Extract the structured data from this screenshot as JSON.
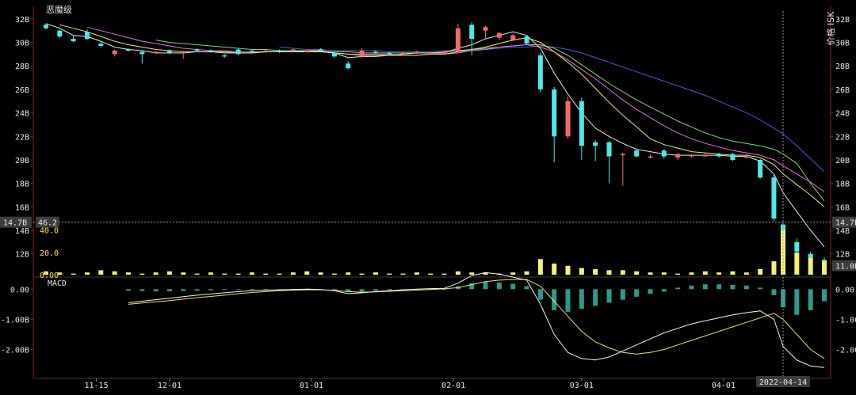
{
  "window": {
    "title": "恶魔级"
  },
  "price_axis_label": "价格 ISK",
  "crosshair": {
    "price_label": "14.7B",
    "volume_label": "46.2",
    "right_price_label": "14.7B",
    "right_lower_label": "11.0B",
    "date_label": "2022-04-14"
  },
  "panels": {
    "price": {
      "y_ticks": [
        "32B",
        "30B",
        "28B",
        "26B",
        "24B",
        "22B",
        "20B",
        "18B",
        "16B",
        "14B",
        "12B"
      ],
      "ylim": [
        10.5,
        32.8
      ]
    },
    "volume": {
      "y_ticks": [
        "40.0",
        "20.0",
        "0.00"
      ],
      "ylim": [
        0,
        46.2
      ]
    },
    "macd": {
      "title": "MACD",
      "y_ticks": [
        "0.00",
        "-1.00B",
        "-2.00B"
      ],
      "ylim": [
        -2.75,
        0.35
      ]
    }
  },
  "x_axis": {
    "ticks": [
      "11-15",
      "12-01",
      "01-01",
      "02-01",
      "03-01",
      "04-01"
    ]
  },
  "colors": {
    "up": "#f26a6a",
    "down": "#4fe8e8",
    "volume": "#f5f07a",
    "ma5": "#e8e8e8",
    "ma10": "#f2e56a",
    "ma20": "#e070e0",
    "ma60": "#7ad86a",
    "ma120": "#4a5ad8",
    "macd_hist": "#2c9a8c",
    "dif": "#f2f2f2",
    "dea": "#e8df6a",
    "axis": "#9b1c1c",
    "crosshair": "#9a9a9a"
  },
  "chart_data": {
    "type": "candlestick",
    "unit": "B ISK",
    "dates": [
      "2021-11-04",
      "2021-11-07",
      "2021-11-10",
      "2021-11-13",
      "2021-11-16",
      "2021-11-19",
      "2021-11-22",
      "2021-11-25",
      "2021-11-28",
      "2021-12-01",
      "2021-12-04",
      "2021-12-07",
      "2021-12-10",
      "2021-12-13",
      "2021-12-16",
      "2021-12-19",
      "2021-12-22",
      "2021-12-25",
      "2021-12-28",
      "2021-12-31",
      "2022-01-03",
      "2022-01-06",
      "2022-01-09",
      "2022-01-12",
      "2022-01-15",
      "2022-01-18",
      "2022-01-21",
      "2022-01-24",
      "2022-01-27",
      "2022-01-30",
      "2022-02-02",
      "2022-02-05",
      "2022-02-08",
      "2022-02-11",
      "2022-02-14",
      "2022-02-17",
      "2022-02-20",
      "2022-02-23",
      "2022-02-26",
      "2022-03-01",
      "2022-03-04",
      "2022-03-07",
      "2022-03-10",
      "2022-03-13",
      "2022-03-16",
      "2022-03-19",
      "2022-03-22",
      "2022-03-25",
      "2022-03-28",
      "2022-03-31",
      "2022-04-03",
      "2022-04-06",
      "2022-04-09",
      "2022-04-12",
      "2022-04-14",
      "2022-04-17",
      "2022-04-20",
      "2022-04-23"
    ],
    "open": [
      31.5,
      31.0,
      30.3,
      30.9,
      29.9,
      29.0,
      29.4,
      29.2,
      29.1,
      29.3,
      29.1,
      29.4,
      29.3,
      28.9,
      29.4,
      29.3,
      29.2,
      29.3,
      29.3,
      29.2,
      29.4,
      29.1,
      28.2,
      28.8,
      29.2,
      29.1,
      29.0,
      29.1,
      29.0,
      29.0,
      29.2,
      31.5,
      31.0,
      30.4,
      30.2,
      30.5,
      28.9,
      26.0,
      22.0,
      25.0,
      21.5,
      21.5,
      20.4,
      20.8,
      20.3,
      20.8,
      20.2,
      20.3,
      20.4,
      20.5,
      20.5,
      20.3,
      20.0,
      18.5,
      14.5,
      13.0,
      12.0,
      11.5
    ],
    "close": [
      31.2,
      30.5,
      30.1,
      30.3,
      29.7,
      29.3,
      29.3,
      29.0,
      29.2,
      29.1,
      29.2,
      29.3,
      29.2,
      28.8,
      29.0,
      29.2,
      29.3,
      29.2,
      29.4,
      29.3,
      29.3,
      28.8,
      27.8,
      29.3,
      29.1,
      29.0,
      29.1,
      29.2,
      29.1,
      29.2,
      31.2,
      30.3,
      31.3,
      30.8,
      30.6,
      29.9,
      26.0,
      22.0,
      25.0,
      21.2,
      21.2,
      20.3,
      20.5,
      20.3,
      20.3,
      20.3,
      20.5,
      20.4,
      20.4,
      20.3,
      20.0,
      20.3,
      18.5,
      15.0,
      13.0,
      12.2,
      11.6,
      11.2
    ],
    "high": [
      31.6,
      31.1,
      30.6,
      31.1,
      30.1,
      29.4,
      29.5,
      29.3,
      29.3,
      29.4,
      29.3,
      29.5,
      29.4,
      29.0,
      29.5,
      29.4,
      29.4,
      29.4,
      29.5,
      29.3,
      29.5,
      29.2,
      28.4,
      29.5,
      29.3,
      29.2,
      29.2,
      29.3,
      29.2,
      29.3,
      31.6,
      31.7,
      31.4,
      30.9,
      30.7,
      30.6,
      29.1,
      26.2,
      25.4,
      25.3,
      21.7,
      21.6,
      20.6,
      20.9,
      20.5,
      20.9,
      20.6,
      20.5,
      20.6,
      20.6,
      20.6,
      20.5,
      20.1,
      18.8,
      14.7,
      13.3,
      12.2,
      11.7
    ],
    "low": [
      31.1,
      30.4,
      30.0,
      30.2,
      29.6,
      28.8,
      29.2,
      28.2,
      29.0,
      29.0,
      28.6,
      29.2,
      29.1,
      28.7,
      28.9,
      29.1,
      29.1,
      29.1,
      29.2,
      29.1,
      29.2,
      28.7,
      27.7,
      28.7,
      29.0,
      28.9,
      28.9,
      29.0,
      28.9,
      28.9,
      29.1,
      28.9,
      30.3,
      30.2,
      30.1,
      29.8,
      25.8,
      19.8,
      21.8,
      20.0,
      19.9,
      18.0,
      17.8,
      20.2,
      20.1,
      20.1,
      20.0,
      20.2,
      20.3,
      20.2,
      19.9,
      20.1,
      18.4,
      14.8,
      12.6,
      11.8,
      11.4,
      11.0
    ],
    "volume": [
      3,
      2,
      1,
      2,
      4,
      3,
      2,
      1,
      2,
      3,
      2,
      1,
      2,
      1,
      1,
      2,
      1,
      1,
      2,
      3,
      2,
      1,
      2,
      1,
      2,
      1,
      1,
      2,
      1,
      1,
      3,
      2,
      2,
      1,
      2,
      3,
      14,
      10,
      8,
      6,
      5,
      4,
      4,
      3,
      2,
      2,
      1,
      2,
      3,
      2,
      3,
      2,
      5,
      12,
      40,
      20,
      15,
      12
    ],
    "ma5": [
      31.6,
      31.2,
      30.6,
      30.5,
      30.1,
      29.6,
      29.4,
      29.3,
      29.1,
      29.1,
      29.1,
      29.2,
      29.2,
      29.1,
      29.1,
      29.1,
      29.2,
      29.2,
      29.2,
      29.3,
      29.3,
      29.1,
      28.7,
      28.8,
      28.8,
      28.9,
      29.0,
      29.1,
      29.1,
      29.1,
      29.5,
      29.8,
      30.3,
      30.6,
      30.9,
      30.6,
      29.5,
      27.4,
      25.6,
      24.0,
      22.7,
      22.0,
      21.4,
      20.9,
      20.7,
      20.5,
      20.4,
      20.4,
      20.4,
      20.4,
      20.3,
      20.3,
      19.9,
      18.8,
      17.2,
      15.6,
      14.0,
      12.6
    ],
    "ma10": [
      null,
      31.5,
      31.2,
      30.9,
      30.5,
      30.1,
      29.8,
      29.6,
      29.4,
      29.3,
      29.2,
      29.2,
      29.2,
      29.2,
      29.1,
      29.1,
      29.2,
      29.2,
      29.2,
      29.2,
      29.2,
      29.1,
      29.0,
      28.9,
      28.9,
      28.9,
      28.9,
      28.9,
      29.0,
      29.0,
      29.2,
      29.4,
      29.6,
      29.9,
      30.2,
      30.4,
      30.0,
      29.2,
      28.3,
      27.3,
      26.1,
      24.9,
      23.8,
      22.8,
      21.8,
      21.3,
      21.0,
      20.7,
      20.6,
      20.5,
      20.4,
      20.4,
      20.2,
      19.6,
      18.8,
      17.9,
      17.0,
      16.0
    ],
    "ma20": [
      null,
      null,
      null,
      31.3,
      31.0,
      30.7,
      30.4,
      30.1,
      29.9,
      29.7,
      29.5,
      29.4,
      29.3,
      29.3,
      29.2,
      29.2,
      29.2,
      29.2,
      29.2,
      29.2,
      29.2,
      29.1,
      29.0,
      29.0,
      29.0,
      29.0,
      28.9,
      28.9,
      29.0,
      29.0,
      29.1,
      29.3,
      29.4,
      29.6,
      29.7,
      29.8,
      29.6,
      29.2,
      28.5,
      27.7,
      26.9,
      26.0,
      25.1,
      24.3,
      23.6,
      22.9,
      22.3,
      21.8,
      21.4,
      21.1,
      20.8,
      20.6,
      20.4,
      20.0,
      19.5,
      18.8,
      18.1,
      17.3
    ],
    "ma60": [
      null,
      null,
      null,
      null,
      null,
      null,
      null,
      null,
      30.2,
      30.0,
      29.9,
      29.8,
      29.7,
      29.6,
      29.5,
      29.4,
      29.4,
      29.3,
      29.3,
      29.3,
      29.2,
      29.2,
      29.2,
      29.1,
      29.1,
      29.1,
      29.1,
      29.1,
      29.1,
      29.2,
      29.3,
      29.4,
      29.5,
      29.6,
      29.7,
      29.8,
      29.8,
      29.5,
      28.9,
      28.1,
      27.3,
      26.5,
      25.8,
      25.1,
      24.5,
      23.9,
      23.3,
      22.8,
      22.3,
      21.9,
      21.6,
      21.4,
      21.2,
      20.9,
      20.5,
      19.7,
      18.0,
      16.5
    ],
    "ma120": [
      null,
      null,
      null,
      null,
      null,
      null,
      null,
      null,
      null,
      null,
      null,
      null,
      null,
      null,
      null,
      null,
      null,
      29.6,
      29.5,
      29.4,
      29.4,
      29.3,
      29.3,
      29.3,
      29.3,
      29.2,
      29.2,
      29.2,
      29.2,
      29.3,
      29.3,
      29.4,
      29.4,
      29.5,
      29.6,
      29.6,
      29.7,
      29.6,
      29.4,
      29.1,
      28.7,
      28.3,
      27.9,
      27.5,
      27.1,
      26.7,
      26.3,
      25.9,
      25.5,
      25.0,
      24.5,
      24.0,
      23.4,
      22.7,
      22.2,
      21.2,
      20.1,
      19.0
    ],
    "macd_hist": [
      null,
      null,
      null,
      null,
      null,
      null,
      -0.05,
      -0.06,
      -0.07,
      -0.07,
      -0.06,
      -0.05,
      -0.04,
      -0.03,
      -0.02,
      -0.01,
      0.0,
      0.0,
      0.01,
      0.0,
      -0.01,
      -0.04,
      -0.1,
      -0.08,
      -0.05,
      -0.03,
      -0.01,
      0.0,
      0.01,
      0.01,
      0.1,
      0.2,
      0.24,
      0.22,
      0.18,
      0.1,
      -0.35,
      -0.7,
      -0.75,
      -0.65,
      -0.55,
      -0.45,
      -0.35,
      -0.25,
      -0.15,
      -0.08,
      0.05,
      0.12,
      0.16,
      0.16,
      0.14,
      0.12,
      0.05,
      -0.2,
      -0.6,
      -0.85,
      -0.7,
      -0.4
    ],
    "dif": [
      null,
      null,
      null,
      null,
      null,
      null,
      -0.45,
      -0.4,
      -0.35,
      -0.3,
      -0.25,
      -0.2,
      -0.16,
      -0.12,
      -0.08,
      -0.05,
      -0.03,
      -0.02,
      -0.01,
      0.0,
      -0.01,
      -0.05,
      -0.15,
      -0.12,
      -0.08,
      -0.05,
      -0.02,
      0.0,
      0.02,
      0.03,
      0.2,
      0.45,
      0.55,
      0.5,
      0.4,
      0.3,
      -0.5,
      -1.5,
      -2.1,
      -2.3,
      -2.35,
      -2.25,
      -2.05,
      -1.85,
      -1.65,
      -1.45,
      -1.3,
      -1.15,
      -1.05,
      -0.95,
      -0.85,
      -0.78,
      -0.72,
      -1.0,
      -1.9,
      -2.35,
      -2.55,
      -2.6
    ],
    "dea": [
      null,
      null,
      null,
      null,
      null,
      null,
      -0.5,
      -0.46,
      -0.42,
      -0.38,
      -0.33,
      -0.28,
      -0.24,
      -0.2,
      -0.15,
      -0.11,
      -0.08,
      -0.05,
      -0.03,
      -0.02,
      -0.02,
      -0.04,
      -0.08,
      -0.1,
      -0.09,
      -0.07,
      -0.05,
      -0.03,
      -0.01,
      0.01,
      0.05,
      0.15,
      0.25,
      0.3,
      0.32,
      0.32,
      0.1,
      -0.4,
      -0.9,
      -1.4,
      -1.75,
      -1.95,
      -2.1,
      -2.15,
      -2.1,
      -2.0,
      -1.85,
      -1.7,
      -1.55,
      -1.4,
      -1.25,
      -1.1,
      -0.95,
      -0.8,
      -1.0,
      -1.5,
      -2.0,
      -2.3
    ]
  }
}
